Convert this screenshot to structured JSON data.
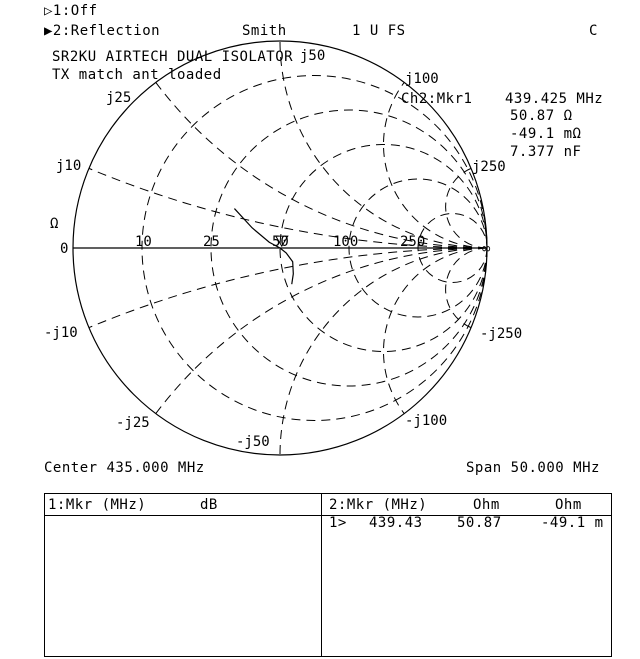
{
  "header": {
    "ch1": "▷1:Off",
    "ch2": "▶2:Reflection",
    "format": "Smith",
    "scale": "1 U FS",
    "flag": "C"
  },
  "title": {
    "line1": "SR2KU AIRTECH DUAL ISOLATOR",
    "line2": "TX match ant loaded"
  },
  "marker_readout": {
    "label": "Ch2:Mkr1",
    "freq": "439.425 MHz",
    "resistance": "50.87 Ω",
    "reactance": "-49.1 mΩ",
    "equiv": "7.377 nF"
  },
  "chart_data": {
    "type": "smith",
    "reference_impedance_ohm": 50,
    "resistance_circles_ohm": [
      10,
      25,
      50,
      100,
      250
    ],
    "reactance_arcs_ohm": [
      10,
      25,
      50,
      100,
      250
    ],
    "labels": {
      "r": [
        "0",
        "10",
        "25",
        "50",
        "100",
        "250",
        "∞"
      ],
      "xpos": [
        "j10",
        "j25",
        "j50",
        "j100",
        "j250"
      ],
      "xneg": [
        "-j10",
        "-j25",
        "-j50",
        "-j100",
        "-j250"
      ],
      "unit": "Ω"
    },
    "marker": {
      "freq_mhz": 439.425,
      "r_ohm": 50.87,
      "x_ohm": -0.0491
    }
  },
  "footer": {
    "center": "Center 435.000 MHz",
    "span": "Span 50.000 MHz"
  },
  "table": {
    "left_header": [
      "1:Mkr (MHz)",
      "dB"
    ],
    "right_header": [
      "2:Mkr (MHz)",
      "Ohm",
      "Ohm"
    ],
    "right_rows": [
      [
        "1>",
        "439.43",
        "50.87",
        "-49.1 m"
      ]
    ]
  }
}
